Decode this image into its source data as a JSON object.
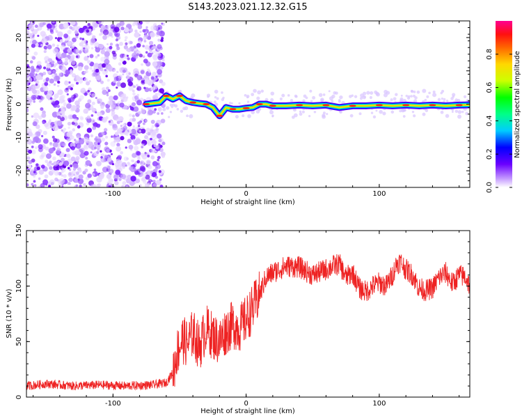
{
  "title": "S143.2023.021.12.32.G15",
  "chart_data": [
    {
      "type": "heatmap",
      "xlabel": "Height of straight line (km)",
      "ylabel": "Frequency (Hz)",
      "xlim": [
        -165,
        168
      ],
      "ylim": [
        -25,
        25
      ],
      "xticks": [
        -100,
        0,
        100
      ],
      "yticks": [
        -20,
        -10,
        0,
        10,
        20
      ],
      "colorbar": {
        "label": "Normalized spectral amplitude",
        "range": [
          0.0,
          1.0
        ],
        "ticks": [
          0.0,
          0.2,
          0.4,
          0.6,
          0.8
        ]
      },
      "noise_region": {
        "x_range": [
          -165,
          -62
        ],
        "y_range": [
          -25,
          25
        ]
      },
      "ridge": {
        "x": [
          -75,
          -65,
          -60,
          -55,
          -50,
          -45,
          -40,
          -35,
          -30,
          -25,
          -20,
          -15,
          -10,
          -5,
          0,
          5,
          10,
          15,
          20,
          30,
          40,
          50,
          60,
          70,
          80,
          90,
          100,
          110,
          120,
          130,
          140,
          150,
          160,
          168
        ],
        "y": [
          0.0,
          0.5,
          2.5,
          1.5,
          2.5,
          1.0,
          0.5,
          0.2,
          0.0,
          -1.0,
          -3.5,
          -1.0,
          -1.5,
          -1.5,
          -1.2,
          -1.0,
          0.0,
          0.0,
          -0.5,
          -0.5,
          -0.3,
          -0.5,
          -0.3,
          -1.0,
          -0.5,
          -0.5,
          -0.3,
          -0.5,
          -0.3,
          -0.5,
          -0.3,
          -0.5,
          -0.3,
          -0.2
        ]
      }
    },
    {
      "type": "line",
      "xlabel": "Height of straight line (km)",
      "ylabel": "SNR (10 * v/v)",
      "xlim": [
        -165,
        168
      ],
      "ylim": [
        0,
        150
      ],
      "xticks": [
        -100,
        0,
        100
      ],
      "yticks": [
        0,
        50,
        100,
        150
      ],
      "color": "#ee2222",
      "series": [
        {
          "x": [
            -165,
            -150,
            -130,
            -110,
            -90,
            -70,
            -60,
            -55,
            -52,
            -48,
            -44,
            -40,
            -35,
            -30,
            -25,
            -20,
            -15,
            -10,
            -5,
            0,
            5,
            10,
            15,
            20,
            25,
            30,
            40,
            50,
            60,
            65,
            70,
            75,
            80,
            85,
            90,
            95,
            100,
            105,
            110,
            113,
            116,
            120,
            125,
            130,
            135,
            140,
            145,
            150,
            155,
            160,
            165,
            168
          ],
          "y": [
            10,
            12,
            10,
            11,
            10,
            11,
            13,
            22,
            40,
            52,
            48,
            58,
            45,
            62,
            55,
            50,
            60,
            65,
            62,
            70,
            80,
            92,
            108,
            112,
            115,
            118,
            117,
            110,
            115,
            118,
            120,
            108,
            112,
            98,
            95,
            100,
            103,
            100,
            110,
            120,
            122,
            115,
            110,
            98,
            96,
            98,
            108,
            112,
            102,
            110,
            108,
            100
          ]
        }
      ]
    }
  ]
}
